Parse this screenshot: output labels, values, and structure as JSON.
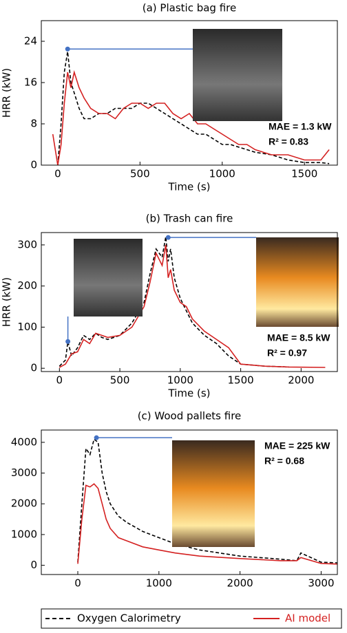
{
  "chart_data": [
    {
      "type": "line",
      "title": "(a) Plastic bag fire",
      "xlabel": "Time (s)",
      "ylabel": "HRR (kW)",
      "x": [
        -30,
        0,
        20,
        40,
        60,
        80,
        100,
        130,
        160,
        200,
        250,
        300,
        350,
        400,
        450,
        500,
        550,
        600,
        650,
        700,
        750,
        800,
        850,
        900,
        950,
        1000,
        1050,
        1100,
        1150,
        1200,
        1300,
        1400,
        1500,
        1600,
        1650
      ],
      "series": [
        {
          "name": "Oxygen Calorimetry",
          "color": "#000000",
          "dash": true,
          "values": [
            null,
            0,
            8,
            18,
            22,
            16,
            14,
            11,
            9,
            9,
            10,
            10,
            11,
            11,
            11,
            12,
            12,
            11,
            10,
            9,
            8,
            7,
            6,
            6,
            5,
            4,
            4,
            3.5,
            3,
            2.5,
            2,
            1,
            0.5,
            0.5,
            0.3
          ]
        },
        {
          "name": "AI model",
          "color": "#d42020",
          "dash": false,
          "values": [
            6,
            0,
            4,
            12,
            18,
            15,
            18,
            15,
            13,
            11,
            10,
            10,
            9,
            11,
            12,
            12,
            11,
            12,
            12,
            10,
            9,
            10,
            8,
            8,
            7,
            6,
            5,
            4,
            4,
            3,
            2,
            2,
            1,
            1,
            3
          ]
        }
      ],
      "xlim": [
        -100,
        1700
      ],
      "ylim": [
        0,
        28
      ],
      "xticks": [
        0,
        500,
        1000,
        1500
      ],
      "yticks": [
        0,
        8,
        16,
        24
      ],
      "markers": [
        {
          "x": 60,
          "y": 22.5
        }
      ],
      "annotations": [
        "MAE = 1.3 kW",
        "R² = 0.83"
      ]
    },
    {
      "type": "line",
      "title": "(b) Trash can fire",
      "xlabel": "Time (s)",
      "ylabel": "HRR (kW)",
      "x": [
        0,
        50,
        70,
        100,
        150,
        200,
        250,
        300,
        350,
        400,
        500,
        600,
        700,
        750,
        800,
        850,
        880,
        900,
        920,
        950,
        1000,
        1050,
        1100,
        1200,
        1300,
        1400,
        1500,
        1700,
        1900,
        2200
      ],
      "series": [
        {
          "color": "#000000",
          "dash": true,
          "values": [
            5,
            20,
            65,
            30,
            50,
            80,
            70,
            85,
            75,
            70,
            80,
            110,
            160,
            230,
            290,
            270,
            320,
            260,
            290,
            220,
            170,
            140,
            110,
            80,
            60,
            30,
            10,
            5,
            3,
            null
          ]
        },
        {
          "color": "#d42020",
          "dash": false,
          "values": [
            2,
            10,
            20,
            35,
            40,
            70,
            60,
            85,
            80,
            75,
            80,
            100,
            150,
            210,
            280,
            250,
            300,
            220,
            240,
            190,
            160,
            150,
            120,
            90,
            70,
            50,
            10,
            5,
            3,
            2
          ]
        }
      ],
      "xlim": [
        -150,
        2300
      ],
      "ylim": [
        -8,
        330
      ],
      "xticks": [
        0,
        500,
        1000,
        1500,
        2000
      ],
      "yticks": [
        0,
        100,
        200,
        300
      ],
      "markers": [
        {
          "x": 70,
          "y": 65
        },
        {
          "x": 900,
          "y": 318
        }
      ],
      "annotations": [
        "MAE = 8.5 kW",
        "R² = 0.97"
      ]
    },
    {
      "type": "line",
      "title": "(c) Wood pallets fire",
      "x": [
        0,
        50,
        100,
        150,
        200,
        250,
        300,
        350,
        400,
        500,
        600,
        800,
        1000,
        1200,
        1500,
        2000,
        2500,
        2700,
        2750,
        3000,
        3200
      ],
      "series": [
        {
          "color": "#000000",
          "dash": true,
          "values": [
            100,
            2000,
            3800,
            3600,
            4100,
            4000,
            3000,
            2400,
            2000,
            1600,
            1400,
            1100,
            900,
            700,
            500,
            300,
            200,
            150,
            400,
            100,
            80
          ]
        },
        {
          "color": "#d42020",
          "dash": false,
          "values": [
            50,
            1500,
            2600,
            2550,
            2650,
            2500,
            2000,
            1500,
            1200,
            900,
            800,
            600,
            500,
            400,
            300,
            220,
            150,
            150,
            250,
            60,
            40
          ]
        }
      ],
      "xlim": [
        -450,
        3200
      ],
      "ylim": [
        -300,
        4400
      ],
      "xticks": [
        0,
        1000,
        2000,
        3000
      ],
      "yticks": [
        0,
        1000,
        2000,
        3000,
        4000
      ],
      "markers": [
        {
          "x": 230,
          "y": 4150
        }
      ],
      "annotations": [
        "MAE = 225 kW",
        "R² = 0.68"
      ]
    }
  ]
}
